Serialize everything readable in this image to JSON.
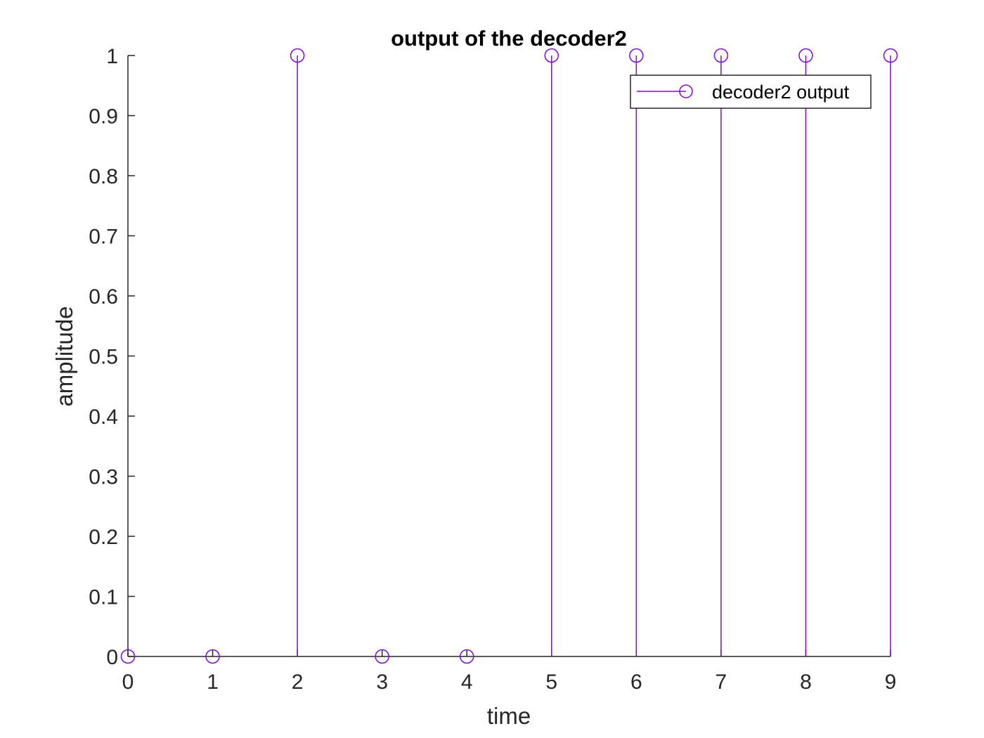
{
  "chart_data": {
    "type": "stem",
    "title": "output of the decoder2",
    "xlabel": "time",
    "ylabel": "amplitude",
    "xlim": [
      0,
      9
    ],
    "ylim": [
      0,
      1
    ],
    "xticks": [
      "0",
      "1",
      "2",
      "3",
      "4",
      "5",
      "6",
      "7",
      "8",
      "9"
    ],
    "yticks": [
      "0",
      "0.1",
      "0.2",
      "0.3",
      "0.4",
      "0.5",
      "0.6",
      "0.7",
      "0.8",
      "0.9",
      "1"
    ],
    "grid": false,
    "legend_position": "top-right",
    "series": [
      {
        "name": "decoder2 output",
        "color": "#7E0BD2",
        "marker": "circle",
        "x": [
          0,
          1,
          2,
          3,
          4,
          5,
          6,
          7,
          8,
          9
        ],
        "y": [
          0,
          0,
          1,
          0,
          0,
          1,
          1,
          1,
          1,
          1
        ]
      }
    ]
  }
}
